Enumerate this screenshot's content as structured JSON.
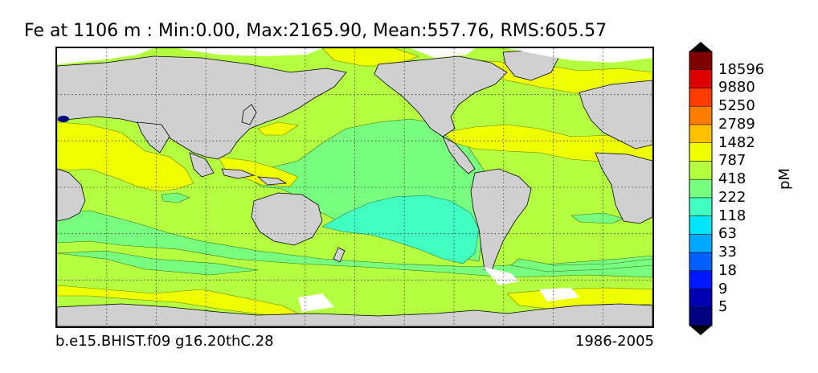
{
  "title": "Fe at 1106 m : Min:0.00, Max:2165.90, Mean:557.76, RMS:605.57",
  "footer": {
    "left": "b.e15.BHIST.f09 g16.20thC.28",
    "right": "1986-2005"
  },
  "colorbar": {
    "unit": "pM",
    "labels": [
      "18596",
      "9880",
      "5250",
      "2789",
      "1482",
      "787",
      "418",
      "222",
      "118",
      "63",
      "33",
      "18",
      "9",
      "5"
    ],
    "colors": [
      "#000080",
      "#0000b2",
      "#0018ff",
      "#0060ff",
      "#00a8ff",
      "#00e4f8",
      "#40ffc0",
      "#78ff80",
      "#b4ff40",
      "#f0ff00",
      "#ffc000",
      "#ff7c00",
      "#ff3c00",
      "#dc0000",
      "#800000"
    ],
    "under_color": "#000080",
    "over_color": "#000000"
  },
  "map": {
    "land_color": "#d0d0d0",
    "ice_color": "#ffffff",
    "gridlines": "dotted"
  }
}
